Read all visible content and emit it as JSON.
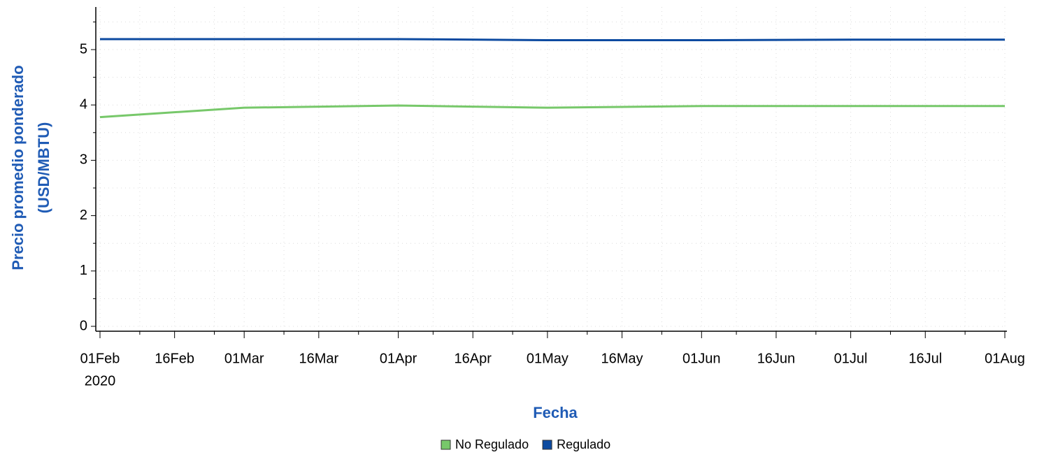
{
  "chart_data": {
    "type": "line",
    "xlabel": "Fecha",
    "ylabel": [
      "Precio promedio ponderado",
      "(USD/MBTU)"
    ],
    "x": [
      "2020-02-01",
      "2020-03-01",
      "2020-04-01",
      "2020-05-01",
      "2020-06-01",
      "2020-07-01",
      "2020-08-01"
    ],
    "series": [
      {
        "name": "No Regulado",
        "color": "#77c86a",
        "values": [
          3.78,
          3.95,
          3.99,
          3.95,
          3.98,
          3.98,
          3.98
        ]
      },
      {
        "name": "Regulado",
        "color": "#0c4aa0",
        "values": [
          5.19,
          5.19,
          5.19,
          5.17,
          5.17,
          5.18,
          5.18
        ]
      }
    ],
    "xlim": [
      "2020-02-01",
      "2020-08-01"
    ],
    "xticks": [
      {
        "value": "2020-02-01",
        "label": "01Feb"
      },
      {
        "value": "2020-02-16",
        "label": "16Feb"
      },
      {
        "value": "2020-03-01",
        "label": "01Mar"
      },
      {
        "value": "2020-03-16",
        "label": "16Mar"
      },
      {
        "value": "2020-04-01",
        "label": "01Apr"
      },
      {
        "value": "2020-04-16",
        "label": "16Apr"
      },
      {
        "value": "2020-05-01",
        "label": "01May"
      },
      {
        "value": "2020-05-16",
        "label": "16May"
      },
      {
        "value": "2020-06-01",
        "label": "01Jun"
      },
      {
        "value": "2020-06-16",
        "label": "16Jun"
      },
      {
        "value": "2020-07-01",
        "label": "01Jul"
      },
      {
        "value": "2020-07-16",
        "label": "16Jul"
      },
      {
        "value": "2020-08-01",
        "label": "01Aug"
      }
    ],
    "x_year_label": "2020",
    "xminorticks": [
      "2020-02-09",
      "2020-02-24",
      "2020-03-09",
      "2020-03-24",
      "2020-04-08",
      "2020-04-24",
      "2020-05-09",
      "2020-05-24",
      "2020-06-08",
      "2020-06-24",
      "2020-07-09",
      "2020-07-24"
    ],
    "ylim": [
      0,
      5.77
    ],
    "yticks": [
      0,
      1,
      2,
      3,
      4,
      5
    ],
    "yminorticks": [
      0.5,
      1.5,
      2.5,
      3.5,
      4.5,
      5.5
    ],
    "grid": true,
    "legend": "bottom"
  }
}
